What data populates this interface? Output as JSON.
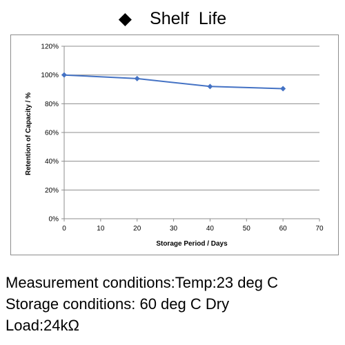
{
  "heading": {
    "bullet": "◆",
    "title": "Shelf  Life"
  },
  "chart_data": {
    "type": "line",
    "title": "Shelf  Life",
    "xlabel": "Storage Period / Days",
    "ylabel": "Retention of Capacity / %",
    "xlim": [
      0,
      70
    ],
    "ylim": [
      0,
      120
    ],
    "x_ticks": [
      0,
      10,
      20,
      30,
      40,
      50,
      60,
      70
    ],
    "x_tick_labels": [
      "0",
      "10",
      "20",
      "30",
      "40",
      "50",
      "60",
      "70"
    ],
    "y_ticks": [
      0,
      20,
      40,
      60,
      80,
      100,
      120
    ],
    "y_tick_labels": [
      "0%",
      "20%",
      "40%",
      "60%",
      "80%",
      "100%",
      "120%"
    ],
    "grid": true,
    "legend": "none",
    "series": [
      {
        "color": "#4472c4",
        "marker": "diamond",
        "x": [
          0,
          20,
          40,
          60
        ],
        "y": [
          100,
          97.5,
          92,
          90.5
        ]
      }
    ]
  },
  "conditions": {
    "line1": "Measurement conditions:Temp:23 deg C",
    "line2": "Storage conditions: 60 deg C Dry",
    "line3": "Load:24kΩ"
  }
}
